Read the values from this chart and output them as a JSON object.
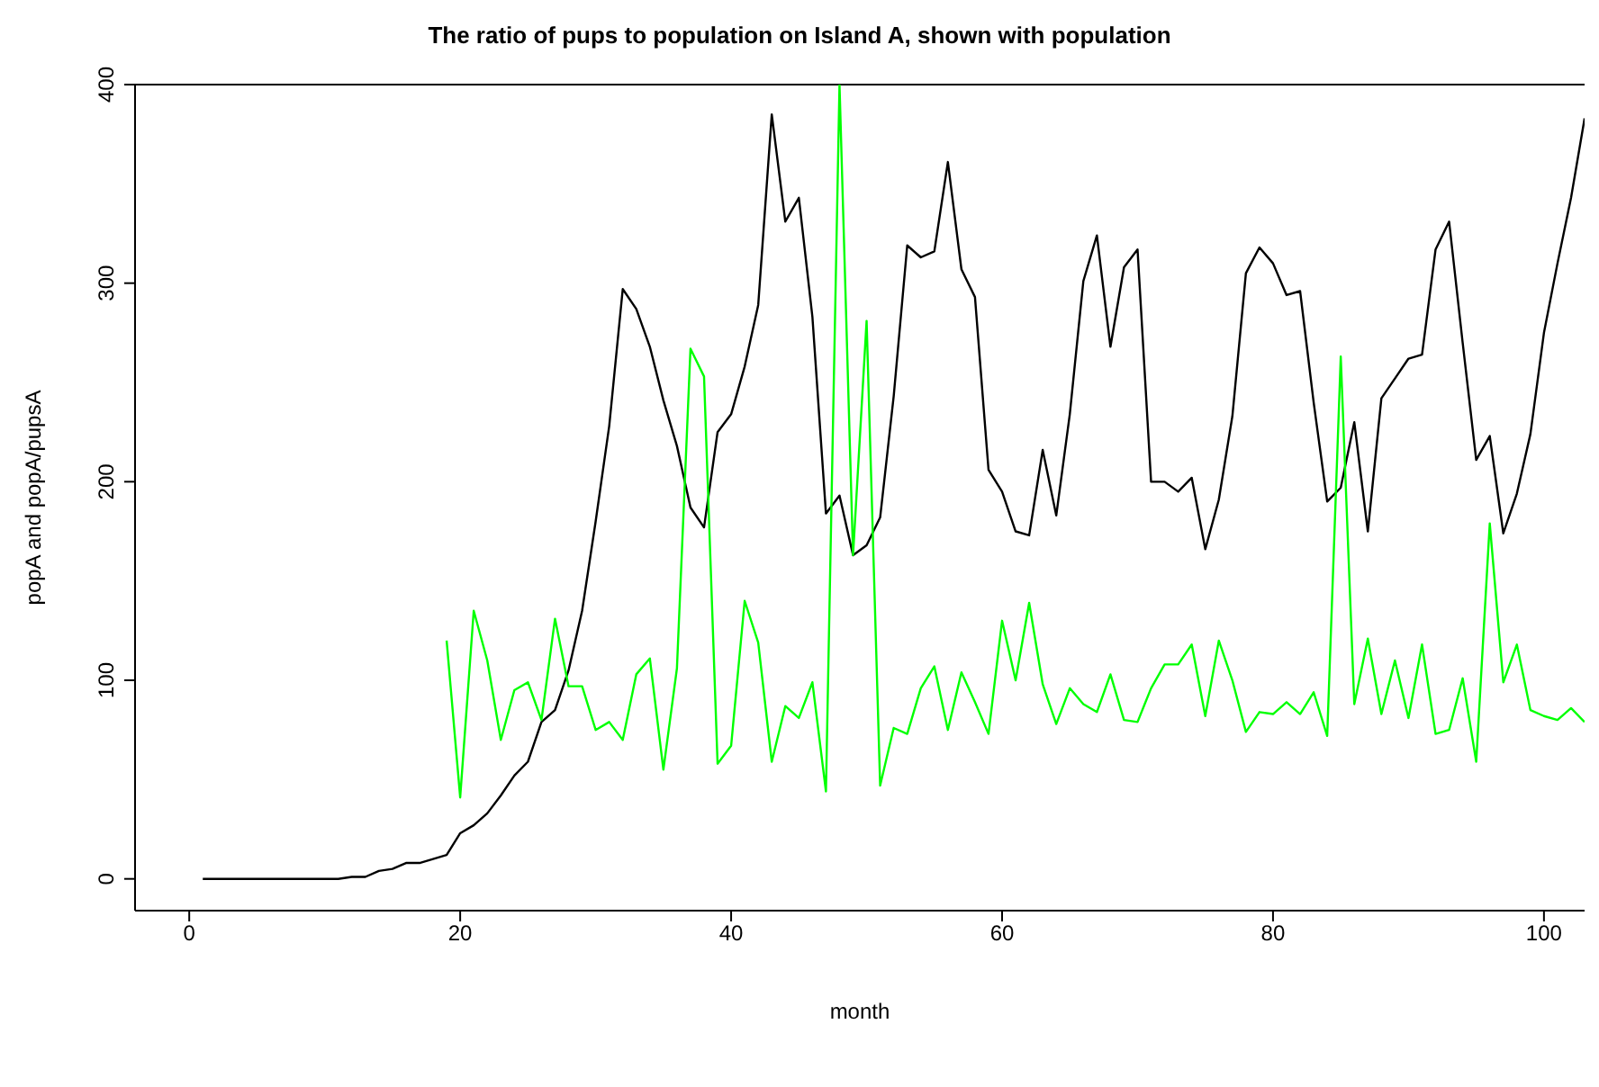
{
  "chart_data": {
    "type": "line",
    "title": "The ratio of pups to population on Island A, shown with population",
    "xlabel": "month",
    "ylabel": "popA and popA/pupsA",
    "x": [
      1,
      2,
      3,
      4,
      5,
      6,
      7,
      8,
      9,
      10,
      11,
      12,
      13,
      14,
      15,
      16,
      17,
      18,
      19,
      20,
      21,
      22,
      23,
      24,
      25,
      26,
      27,
      28,
      29,
      30,
      31,
      32,
      33,
      34,
      35,
      36,
      37,
      38,
      39,
      40,
      41,
      42,
      43,
      44,
      45,
      46,
      47,
      48,
      49,
      50,
      51,
      52,
      53,
      54,
      55,
      56,
      57,
      58,
      59,
      60,
      61,
      62,
      63,
      64,
      65,
      66,
      67,
      68,
      69,
      70,
      71,
      72,
      73,
      74,
      75,
      76,
      77,
      78,
      79,
      80,
      81,
      82,
      83,
      84,
      85,
      86,
      87,
      88,
      89,
      90,
      91,
      92,
      93,
      94,
      95,
      96,
      97,
      98,
      99,
      100,
      101,
      102,
      103
    ],
    "series": [
      {
        "color": "#000000",
        "values": [
          0,
          0,
          0,
          0,
          0,
          0,
          0,
          0,
          0,
          0,
          0,
          1,
          1,
          4,
          5,
          8,
          8,
          10,
          12,
          23,
          27,
          33,
          42,
          52,
          59,
          79,
          85,
          105,
          135,
          180,
          228,
          297,
          287,
          268,
          241,
          218,
          187,
          177,
          225,
          234,
          258,
          289,
          385,
          331,
          343,
          283,
          184,
          193,
          163,
          168,
          182,
          243,
          319,
          313,
          316,
          361,
          307,
          293,
          206,
          195,
          175,
          173,
          216,
          183,
          234,
          301,
          324,
          268,
          308,
          317,
          200,
          200,
          195,
          202,
          166,
          191,
          233,
          305,
          318,
          310,
          294,
          296,
          240,
          190,
          197,
          230,
          175,
          242,
          252,
          262,
          264,
          317,
          331,
          270,
          211,
          223,
          174,
          194,
          224,
          275,
          310,
          343,
          383
        ]
      },
      {
        "color": "#00ff00",
        "values": [
          null,
          null,
          null,
          null,
          null,
          null,
          null,
          null,
          null,
          null,
          null,
          null,
          null,
          null,
          null,
          null,
          null,
          null,
          120,
          41,
          135,
          110,
          70,
          95,
          99,
          80,
          131,
          97,
          97,
          75,
          79,
          70,
          103,
          111,
          55,
          106,
          267,
          253,
          58,
          67,
          140,
          119,
          59,
          87,
          81,
          99,
          44,
          400,
          163,
          281,
          47,
          76,
          73,
          96,
          107,
          75,
          104,
          89,
          73,
          130,
          100,
          139,
          98,
          78,
          96,
          88,
          84,
          103,
          80,
          79,
          96,
          108,
          108,
          118,
          82,
          120,
          100,
          74,
          84,
          83,
          89,
          83,
          94,
          72,
          263,
          88,
          121,
          83,
          110,
          81,
          118,
          73,
          75,
          101,
          59,
          179,
          99,
          118,
          85,
          82,
          80,
          86,
          79
        ]
      }
    ],
    "xlim": [
      -4,
      103
    ],
    "ylim": [
      -16,
      400
    ],
    "xticks": [
      0,
      20,
      40,
      60,
      80,
      100
    ],
    "yticks": [
      0,
      100,
      200,
      300,
      400
    ],
    "grid": false,
    "legend": false,
    "marker": "none",
    "line_style": "solid"
  }
}
